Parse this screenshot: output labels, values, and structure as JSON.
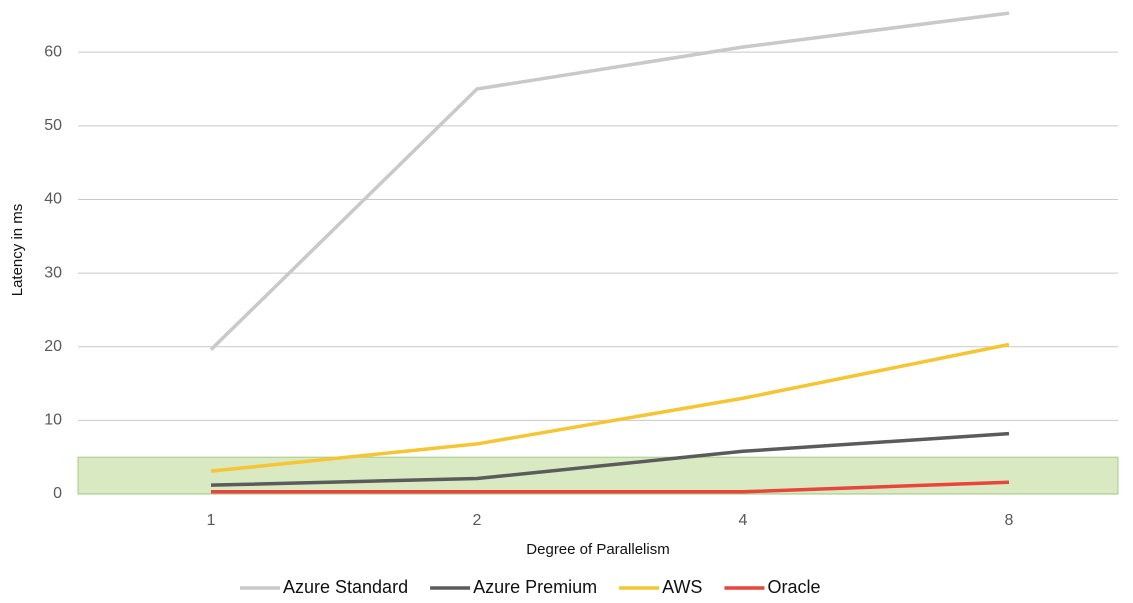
{
  "chart_data": {
    "type": "line",
    "x_label": "Degree of Parallelism",
    "y_label": "Latency in ms",
    "categories": [
      "1",
      "2",
      "4",
      "8"
    ],
    "series": [
      {
        "name": "Azure Standard",
        "color": "#c9c9c9",
        "values": [
          19.6,
          55,
          60.7,
          65.3
        ]
      },
      {
        "name": "Azure Premium",
        "color": "#5b5b5b",
        "values": [
          1.2,
          2.1,
          5.8,
          8.2
        ]
      },
      {
        "name": "AWS",
        "color": "#f6c533",
        "values": [
          3.1,
          6.8,
          13,
          20.3
        ]
      },
      {
        "name": "Oracle",
        "color": "#e8453c",
        "values": [
          0.3,
          0.3,
          0.3,
          1.6
        ]
      }
    ],
    "band": {
      "range": [
        0,
        5
      ],
      "color": "#d5e8bd"
    },
    "ylim": [
      0,
      66
    ],
    "yticks": [
      0,
      10,
      20,
      30,
      40,
      50,
      60
    ],
    "grid": true,
    "legend": "bottom"
  }
}
